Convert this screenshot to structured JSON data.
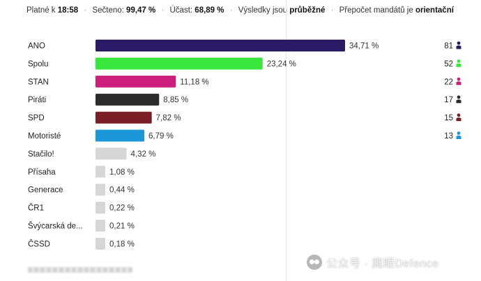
{
  "header": {
    "platne_label": "Platné k",
    "time": "18:58",
    "secteno_label": "Sečteno:",
    "secteno_value": "99,47 %",
    "ucast_label": "Účast:",
    "ucast_value": "68,89 %",
    "vysledky_text": "Výsledky jsou",
    "vysledky_state": "průběžné",
    "prepocet_text": "Přepočet mandátů je",
    "prepocet_state": "orientační",
    "separator": "·"
  },
  "chart_data": {
    "type": "bar",
    "orientation": "horizontal",
    "xlim": [
      0,
      34.71
    ],
    "categories": [
      "ANO",
      "Spolu",
      "STAN",
      "Piráti",
      "SPD",
      "Motoristé",
      "Stačilo!",
      "Přísaha",
      "Generace",
      "ČR1",
      "Švýcarská de...",
      "ČSSD"
    ],
    "values": [
      34.71,
      23.24,
      11.18,
      8.85,
      7.82,
      6.79,
      4.32,
      1.08,
      0.44,
      0.22,
      0.21,
      0.18
    ],
    "value_labels": [
      "34,71 %",
      "23,24 %",
      "11,18 %",
      "8,85 %",
      "7,82 %",
      "6,79 %",
      "4,32 %",
      "1,08 %",
      "0,44 %",
      "0,22 %",
      "0,21 %",
      "0,18 %"
    ],
    "colors": [
      "#2b1a66",
      "#39e63c",
      "#cc1f7d",
      "#2b2b2b",
      "#7a1d24",
      "#1b96d8",
      "#d6d6d6",
      "#d6d6d6",
      "#d6d6d6",
      "#d6d6d6",
      "#d6d6d6",
      "#d6d6d6"
    ],
    "seats": [
      81,
      52,
      22,
      17,
      15,
      13
    ],
    "seat_icon": "person-icon"
  },
  "watermark": {
    "text": "公众号 · 鹰眼Defence",
    "icon": "wechat-icon"
  }
}
